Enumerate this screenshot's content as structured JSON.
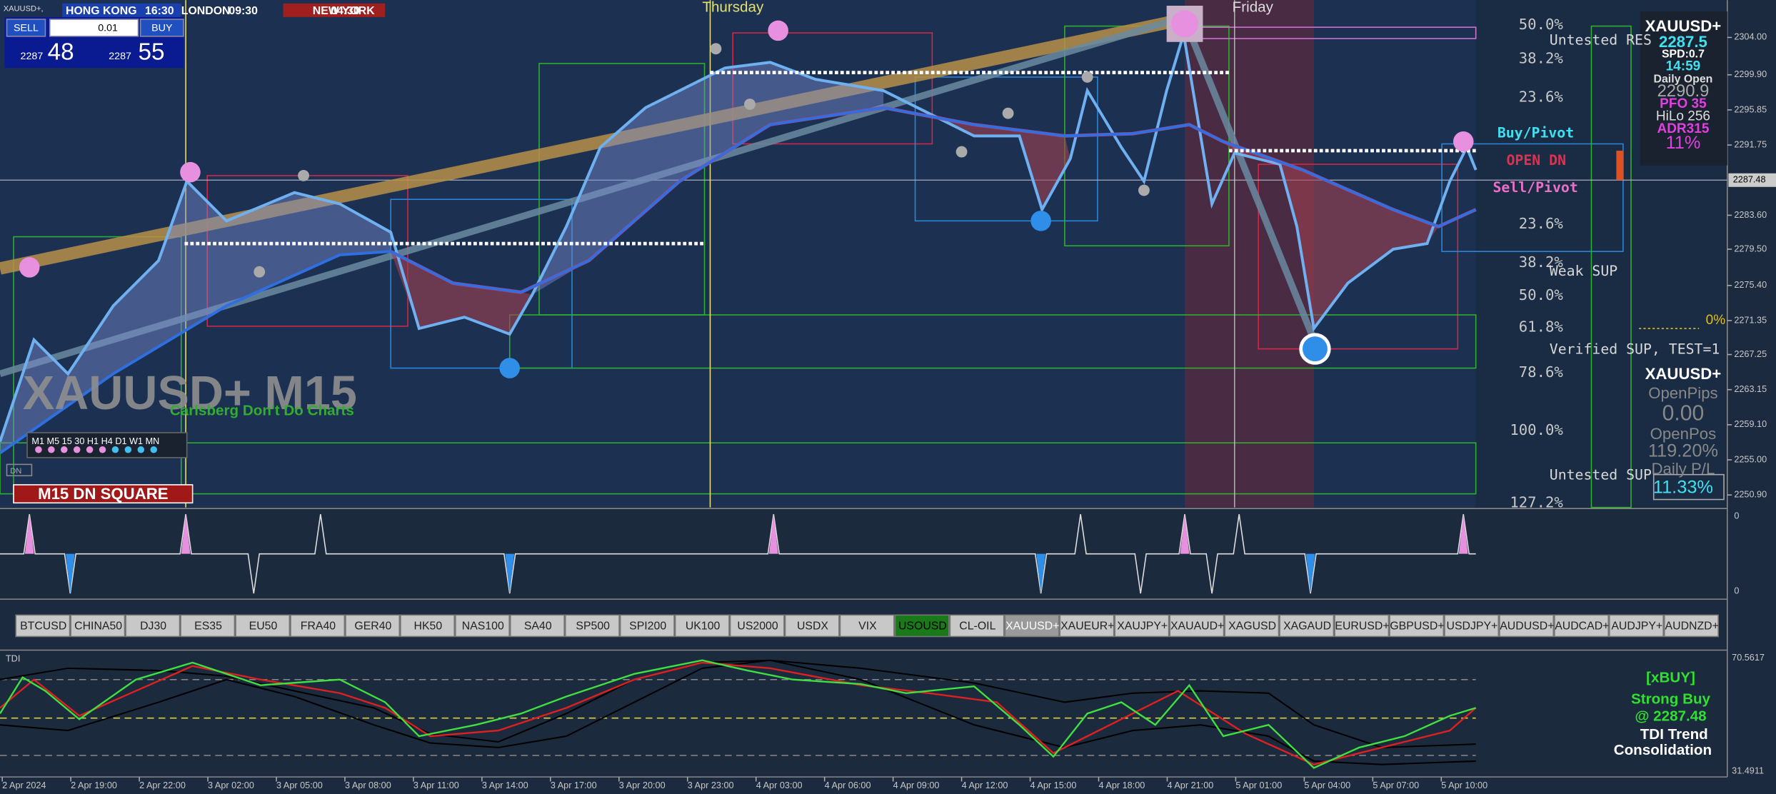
{
  "window": {
    "symbol_title": "XAUUSD+,"
  },
  "trade_panel": {
    "sell": "SELL",
    "buy": "BUY",
    "lot": "0.01",
    "bid_prefix": "2287",
    "bid_pips": "48",
    "ask_prefix": "2287",
    "ask_pips": "55"
  },
  "sessions": [
    {
      "name": "HONG KONG",
      "time": "16:30"
    },
    {
      "name": "LONDON",
      "time": "09:30"
    },
    {
      "name": "NEW YORK",
      "time": "04:30"
    }
  ],
  "day_labels": [
    "Thursday",
    "Friday"
  ],
  "watermark": {
    "symbol": "XAUUSD+ M15",
    "tagline": "Carlsberg Don't Do Charts"
  },
  "timeframes": "M1 M5 15 30 H1 H4 D1 W1 MN",
  "dn_label": "DN",
  "signal_box": "M15  DN SQUARE",
  "fib_levels": [
    "50.0%",
    "38.2%",
    "23.6%",
    "23.6%",
    "38.2%",
    "50.0%",
    "61.8%",
    "78.6%",
    "100.0%",
    "127.2%"
  ],
  "zone_labels": {
    "untested_res": "Untested RES",
    "buy_pivot": "Buy/Pivot",
    "open_dn": "OPEN DN",
    "sell_pivot": "Sell/Pivot",
    "weak_sup": "Weak SUP",
    "verified_sup": "Verified SUP, TEST=1",
    "untested_sup": "Untested SUP",
    "adr_pct": "0%"
  },
  "info_box": {
    "symbol": "XAUUSD+",
    "price": "2287.5",
    "spread": "SPD:0.7",
    "timer": "14:59",
    "daily_open_label": "Daily Open",
    "daily_open": "2290.9",
    "pfo": "PFO 35",
    "hilo": "HiLo 256",
    "adr": "ADR315",
    "pct": "11%"
  },
  "account_box": {
    "symbol": "XAUUSD+",
    "open_pips_label": "OpenPips",
    "open_pips": "0.00",
    "open_pos_label": "OpenPos",
    "open_pos": "119.20%",
    "daily_pl_label": "Daily P/L",
    "daily_pl": "11.33%"
  },
  "price_axis": {
    "ticks": [
      "2304.00",
      "2299.90",
      "2295.85",
      "2291.75",
      "2283.60",
      "2279.50",
      "2275.40",
      "2271.35",
      "2267.25",
      "2263.15",
      "2259.10",
      "2255.00",
      "2250.90"
    ],
    "current": "2287.48"
  },
  "indicator_axis": [
    "0",
    "0"
  ],
  "symbols": [
    "BTCUSD",
    "CHINA50",
    "DJ30",
    "ES35",
    "EU50",
    "FRA40",
    "GER40",
    "HK50",
    "NAS100",
    "SA40",
    "SP500",
    "SPI200",
    "UK100",
    "US2000",
    "USDX",
    "VIX",
    "USOUSD",
    "CL-OIL",
    "XAUUSD+",
    "XAUEUR+",
    "XAUJPY+",
    "XAUAUD+",
    "XAGUSD",
    "XAGAUD",
    "EURUSD+",
    "GBPUSD+",
    "USDJPY+",
    "AUDUSD+",
    "AUDCAD+",
    "AUDJPY+",
    "AUDNZD+"
  ],
  "tdi": {
    "title": "TDI",
    "axis_top": "70.5617",
    "axis_bottom": "31.4911",
    "signal": "[xBUY]",
    "strength": "Strong Buy",
    "at_price": "@ 2287.48",
    "trend_label": "TDI Trend",
    "trend": "Consolidation"
  },
  "time_axis": [
    "2 Apr 2024",
    "2 Apr 19:00",
    "2 Apr 22:00",
    "3 Apr 02:00",
    "3 Apr 05:00",
    "3 Apr 08:00",
    "3 Apr 11:00",
    "3 Apr 14:00",
    "3 Apr 17:00",
    "3 Apr 20:00",
    "3 Apr 23:00",
    "4 Apr 03:00",
    "4 Apr 06:00",
    "4 Apr 09:00",
    "4 Apr 12:00",
    "4 Apr 15:00",
    "4 Apr 18:00",
    "4 Apr 21:00",
    "5 Apr 01:00",
    "5 Apr 04:00",
    "5 Apr 07:00",
    "5 Apr 10:00"
  ]
}
